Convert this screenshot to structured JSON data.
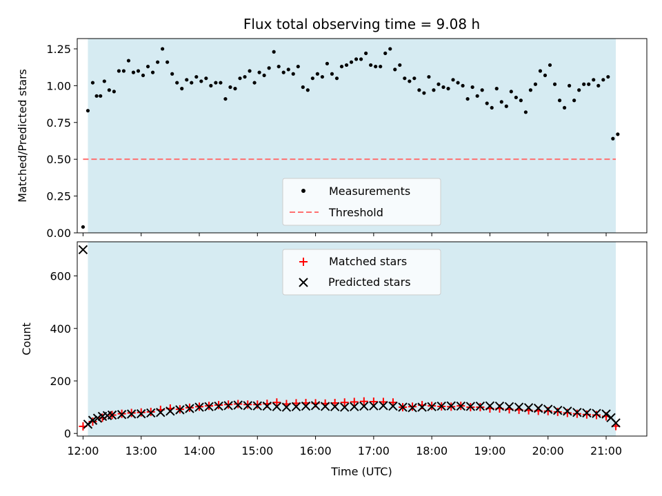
{
  "figure": {
    "title": "Flux total observing time = 9.08 h",
    "xlabel": "Time (UTC)",
    "background_span_color": "#add8e6",
    "threshold_color": "#ff6f6f"
  },
  "chart_data": [
    {
      "type": "scatter",
      "panel": "top",
      "ylabel": "Matched/Predicted stars",
      "xlim": [
        "11:54",
        "21:42"
      ],
      "ylim": [
        0,
        1.32
      ],
      "yticks": [
        "0.00",
        "0.25",
        "0.50",
        "0.75",
        "1.00",
        "1.25"
      ],
      "shaded_span": [
        "12:05",
        "21:10"
      ],
      "legend_position": "lower center",
      "series": [
        {
          "name": "Measurements",
          "color": "#000000",
          "marker": "dot",
          "x": [
            "12:00",
            "12:05",
            "12:10",
            "12:14",
            "12:18",
            "12:22",
            "12:27",
            "12:32",
            "12:37",
            "12:42",
            "12:47",
            "12:52",
            "12:57",
            "13:02",
            "13:07",
            "13:12",
            "13:17",
            "13:22",
            "13:27",
            "13:32",
            "13:37",
            "13:42",
            "13:47",
            "13:52",
            "13:57",
            "14:02",
            "14:07",
            "14:12",
            "14:17",
            "14:22",
            "14:27",
            "14:32",
            "14:37",
            "14:42",
            "14:47",
            "14:52",
            "14:57",
            "15:02",
            "15:07",
            "15:12",
            "15:17",
            "15:22",
            "15:27",
            "15:32",
            "15:37",
            "15:42",
            "15:47",
            "15:52",
            "15:57",
            "16:02",
            "16:07",
            "16:12",
            "16:17",
            "16:22",
            "16:27",
            "16:32",
            "16:37",
            "16:42",
            "16:47",
            "16:52",
            "16:57",
            "17:02",
            "17:07",
            "17:12",
            "17:17",
            "17:22",
            "17:27",
            "17:32",
            "17:37",
            "17:42",
            "17:47",
            "17:52",
            "17:57",
            "18:02",
            "18:07",
            "18:12",
            "18:17",
            "18:22",
            "18:27",
            "18:32",
            "18:37",
            "18:42",
            "18:47",
            "18:52",
            "18:57",
            "19:02",
            "19:07",
            "19:12",
            "19:17",
            "19:22",
            "19:27",
            "19:32",
            "19:37",
            "19:42",
            "19:47",
            "19:52",
            "19:57",
            "20:02",
            "20:07",
            "20:12",
            "20:17",
            "20:22",
            "20:27",
            "20:32",
            "20:37",
            "20:42",
            "20:47",
            "20:52",
            "20:57",
            "21:02",
            "21:07",
            "21:12"
          ],
          "y": [
            0.04,
            0.83,
            1.02,
            0.93,
            0.93,
            1.03,
            0.97,
            0.96,
            1.1,
            1.1,
            1.17,
            1.09,
            1.1,
            1.07,
            1.13,
            1.09,
            1.16,
            1.25,
            1.16,
            1.08,
            1.02,
            0.98,
            1.04,
            1.02,
            1.06,
            1.03,
            1.05,
            1.0,
            1.02,
            1.02,
            0.91,
            0.99,
            0.98,
            1.05,
            1.06,
            1.1,
            1.02,
            1.09,
            1.07,
            1.12,
            1.23,
            1.13,
            1.09,
            1.11,
            1.08,
            1.13,
            0.99,
            0.97,
            1.05,
            1.08,
            1.06,
            1.15,
            1.08,
            1.05,
            1.13,
            1.14,
            1.16,
            1.18,
            1.18,
            1.22,
            1.14,
            1.13,
            1.13,
            1.22,
            1.25,
            1.11,
            1.14,
            1.05,
            1.03,
            1.05,
            0.97,
            0.95,
            1.06,
            0.97,
            1.01,
            0.99,
            0.98,
            1.04,
            1.02,
            1.0,
            0.91,
            0.99,
            0.93,
            0.97,
            0.88,
            0.85,
            0.98,
            0.89,
            0.86,
            0.96,
            0.92,
            0.9,
            0.82,
            0.97,
            1.01,
            1.1,
            1.07,
            1.14,
            1.01,
            0.9,
            0.85,
            1.0,
            0.9,
            0.97,
            1.01,
            1.01,
            1.04,
            1.0,
            1.04,
            1.06,
            0.64,
            0.67
          ]
        },
        {
          "name": "Threshold",
          "color": "#ff6f6f",
          "style": "dashed",
          "x": [
            "12:00",
            "21:10"
          ],
          "y": [
            0.5,
            0.5
          ]
        }
      ]
    },
    {
      "type": "scatter",
      "panel": "bottom",
      "ylabel": "Count",
      "xlim": [
        "11:54",
        "21:42"
      ],
      "ylim": [
        -10,
        730
      ],
      "yticks": [
        "0",
        "200",
        "400",
        "600"
      ],
      "xticks": [
        "12:00",
        "13:00",
        "14:00",
        "15:00",
        "16:00",
        "17:00",
        "18:00",
        "19:00",
        "20:00",
        "21:00"
      ],
      "shaded_span": [
        "12:05",
        "21:10"
      ],
      "legend_position": "upper center",
      "series": [
        {
          "name": "Matched stars",
          "color": "#ff0000",
          "marker": "plus",
          "x": [
            "12:00",
            "12:10",
            "12:20",
            "12:30",
            "12:40",
            "12:50",
            "13:00",
            "13:10",
            "13:20",
            "13:30",
            "13:40",
            "13:50",
            "14:00",
            "14:10",
            "14:20",
            "14:30",
            "14:40",
            "14:50",
            "15:00",
            "15:10",
            "15:20",
            "15:30",
            "15:40",
            "15:50",
            "16:00",
            "16:10",
            "16:20",
            "16:30",
            "16:40",
            "16:50",
            "17:00",
            "17:10",
            "17:20",
            "17:30",
            "17:40",
            "17:50",
            "18:00",
            "18:10",
            "18:20",
            "18:30",
            "18:40",
            "18:50",
            "19:00",
            "19:10",
            "19:20",
            "19:30",
            "19:40",
            "19:50",
            "20:00",
            "20:10",
            "20:20",
            "20:30",
            "20:40",
            "20:50",
            "21:00",
            "21:10"
          ],
          "y": [
            27,
            45,
            60,
            70,
            75,
            78,
            80,
            82,
            90,
            95,
            92,
            98,
            102,
            105,
            108,
            110,
            112,
            110,
            110,
            113,
            118,
            112,
            115,
            116,
            115,
            114,
            116,
            118,
            120,
            122,
            121,
            120,
            118,
            100,
            102,
            108,
            105,
            103,
            102,
            105,
            100,
            100,
            95,
            95,
            92,
            90,
            88,
            86,
            85,
            82,
            78,
            75,
            72,
            70,
            65,
            28
          ]
        },
        {
          "name": "Predicted stars",
          "color": "#000000",
          "marker": "x",
          "x": [
            "12:00",
            "12:05",
            "12:10",
            "12:15",
            "12:20",
            "12:25",
            "12:30",
            "12:40",
            "12:50",
            "13:00",
            "13:10",
            "13:20",
            "13:30",
            "13:40",
            "13:50",
            "14:00",
            "14:10",
            "14:20",
            "14:30",
            "14:40",
            "14:50",
            "15:00",
            "15:10",
            "15:20",
            "15:30",
            "15:40",
            "15:50",
            "16:00",
            "16:10",
            "16:20",
            "16:30",
            "16:40",
            "16:50",
            "17:00",
            "17:10",
            "17:20",
            "17:30",
            "17:40",
            "17:50",
            "18:00",
            "18:10",
            "18:20",
            "18:30",
            "18:40",
            "18:50",
            "19:00",
            "19:10",
            "19:20",
            "19:30",
            "19:40",
            "19:50",
            "20:00",
            "20:10",
            "20:20",
            "20:30",
            "20:40",
            "20:50",
            "21:00",
            "21:05",
            "21:10"
          ],
          "y": [
            700,
            35,
            50,
            58,
            65,
            68,
            70,
            72,
            74,
            75,
            78,
            80,
            85,
            90,
            95,
            100,
            102,
            104,
            106,
            108,
            106,
            105,
            104,
            102,
            100,
            102,
            104,
            106,
            103,
            102,
            100,
            102,
            104,
            105,
            106,
            104,
            100,
            98,
            100,
            102,
            104,
            105,
            104,
            103,
            104,
            105,
            104,
            102,
            100,
            98,
            96,
            92,
            88,
            85,
            80,
            78,
            76,
            74,
            60,
            40
          ]
        }
      ]
    }
  ]
}
